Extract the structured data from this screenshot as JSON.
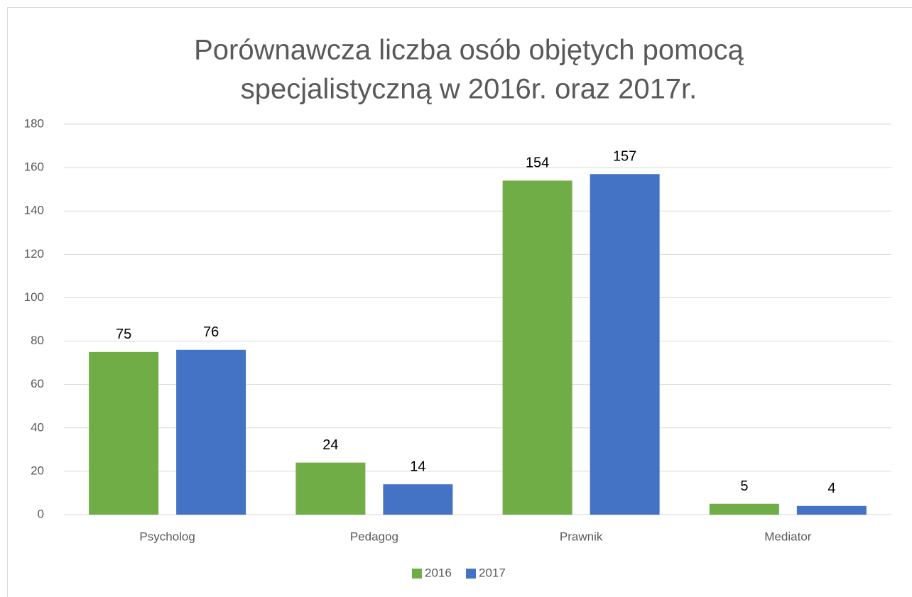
{
  "chart_data": {
    "type": "bar",
    "title": [
      "Porównawcza liczba osób objętych pomocą",
      "specjalistyczną w 2016r. oraz 2017r."
    ],
    "categories": [
      "Psycholog",
      "Pedagog",
      "Prawnik",
      "Mediator"
    ],
    "series": [
      {
        "name": "2016",
        "color": "#70ad47",
        "values": [
          75,
          24,
          154,
          5
        ]
      },
      {
        "name": "2017",
        "color": "#4472c4",
        "values": [
          76,
          14,
          157,
          4
        ]
      }
    ],
    "ylim": [
      0,
      180
    ],
    "yticks": [
      0,
      20,
      40,
      60,
      80,
      100,
      120,
      140,
      160,
      180
    ],
    "grid": true,
    "legend": "bottom"
  }
}
